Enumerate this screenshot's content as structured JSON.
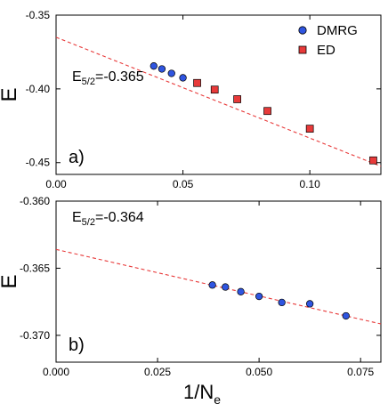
{
  "chart_data": [
    {
      "type": "scatter",
      "panel_label": "a)",
      "ylabel": "E",
      "xlim": [
        0,
        0.128
      ],
      "ylim": [
        -0.458,
        -0.35
      ],
      "xticks": [
        0,
        0.05,
        0.1
      ],
      "xtick_labels": [
        "0.00",
        "0.05",
        "0.10"
      ],
      "yticks": [
        -0.35,
        -0.4,
        -0.45
      ],
      "ytick_labels": [
        "-0.35",
        "-0.40",
        "-0.45"
      ],
      "annotation": {
        "prefix": "E",
        "sub": "5/2",
        "suffix": "=-0.365"
      },
      "legend": {
        "position": "top-right"
      },
      "series": [
        {
          "name": "DMRG",
          "marker": "circle",
          "color": "#2f55e0",
          "x": [
            0.0385,
            0.0417,
            0.0455,
            0.05
          ],
          "y": [
            -0.3845,
            -0.3865,
            -0.3895,
            -0.3925
          ]
        },
        {
          "name": "ED",
          "marker": "square",
          "color": "#e83a3a",
          "x": [
            0.0556,
            0.0625,
            0.0714,
            0.0833,
            0.1,
            0.125
          ],
          "y": [
            -0.396,
            -0.4005,
            -0.407,
            -0.415,
            -0.427,
            -0.4485
          ]
        }
      ],
      "fit": {
        "color": "#e83a3a",
        "style": "dashed",
        "x": [
          0,
          0.128
        ],
        "y": [
          -0.365,
          -0.4525
        ]
      }
    },
    {
      "type": "scatter",
      "panel_label": "b)",
      "ylabel": "E",
      "xlabel": {
        "main": "1/N",
        "sub": "e"
      },
      "xlim": [
        0,
        0.08
      ],
      "ylim": [
        -0.372,
        -0.36
      ],
      "xticks": [
        0,
        0.025,
        0.05,
        0.075
      ],
      "xtick_labels": [
        "0.000",
        "0.025",
        "0.050",
        "0.075"
      ],
      "yticks": [
        -0.36,
        -0.365,
        -0.37
      ],
      "ytick_labels": [
        "-0.360",
        "-0.365",
        "-0.370"
      ],
      "annotation": {
        "prefix": "E",
        "sub": "5/2",
        "suffix": "=-0.364"
      },
      "series": [
        {
          "name": "DMRG",
          "marker": "circle",
          "color": "#2f55e0",
          "x": [
            0.0385,
            0.0417,
            0.0455,
            0.05,
            0.0556,
            0.0625,
            0.0714
          ],
          "y": [
            -0.36625,
            -0.3664,
            -0.36675,
            -0.3671,
            -0.36755,
            -0.36765,
            -0.36855
          ]
        }
      ],
      "fit": {
        "color": "#e83a3a",
        "style": "dashed",
        "x": [
          0,
          0.08
        ],
        "y": [
          -0.3636,
          -0.36915
        ]
      }
    }
  ]
}
